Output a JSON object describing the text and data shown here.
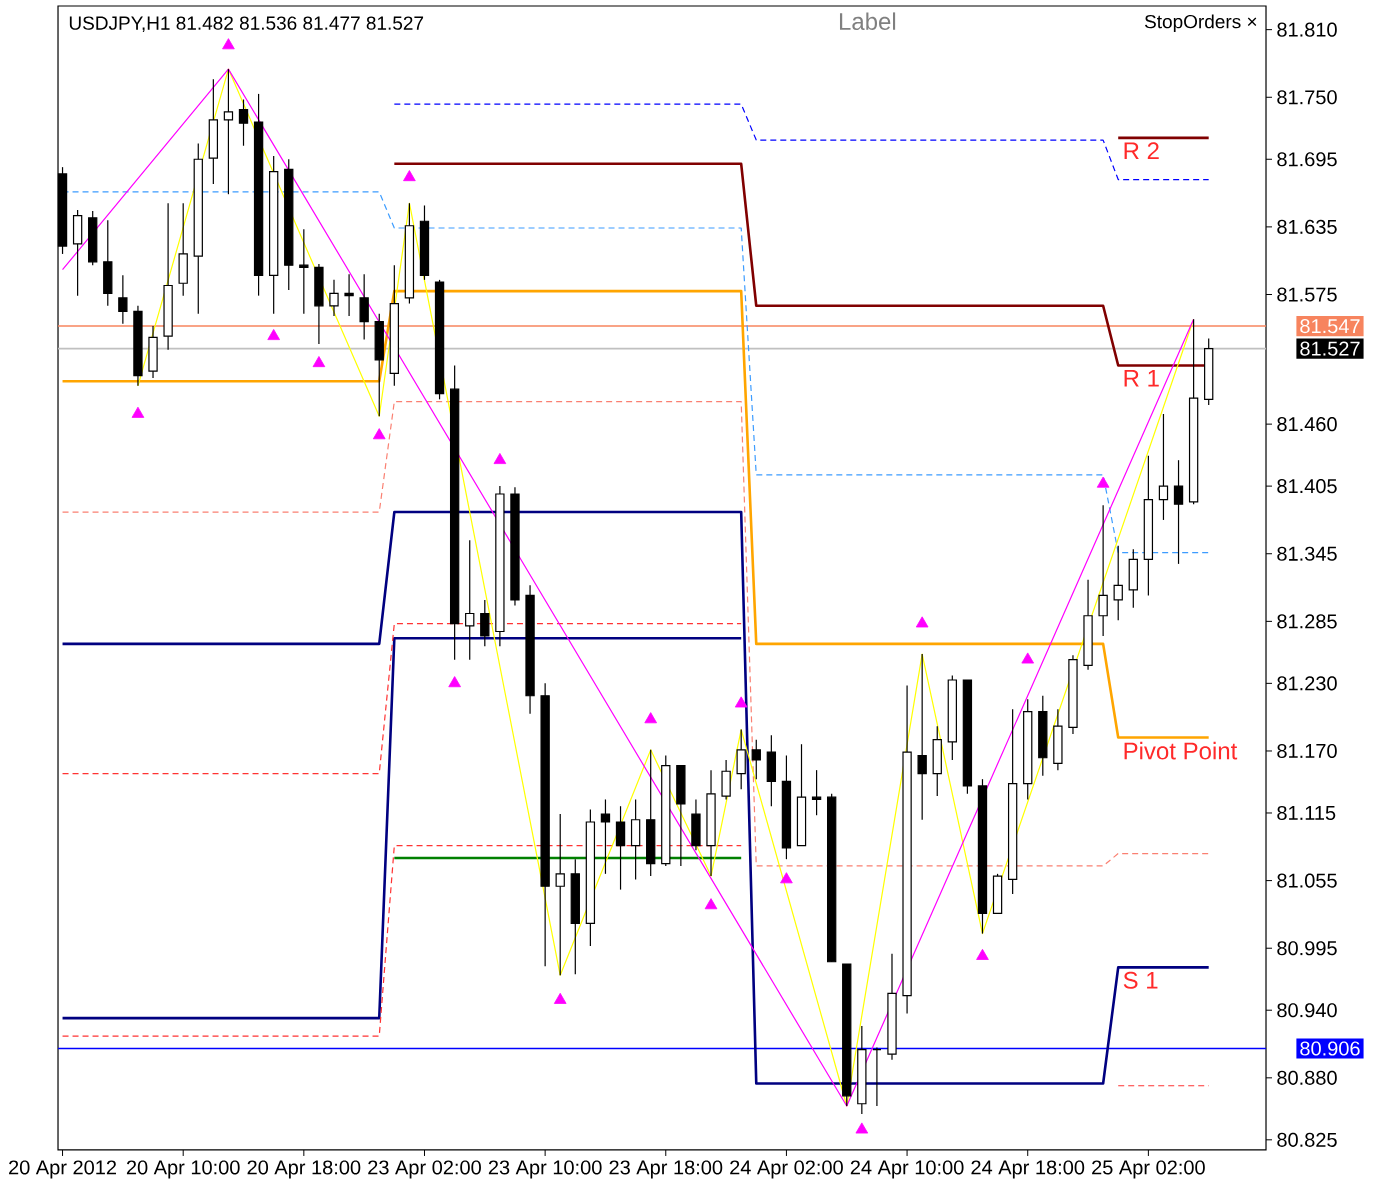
{
  "chart_data": {
    "type": "candlestick",
    "title": "USDJPY,H1 81.482 81.536 81.477 81.527",
    "annotations": [
      "Label",
      "StopOrders ×"
    ],
    "categories": [
      "20 Apr 2012",
      null,
      null,
      null,
      null,
      null,
      null,
      null,
      "20 Apr 10:00",
      null,
      null,
      null,
      null,
      null,
      null,
      null,
      "20 Apr 18:00",
      null,
      null,
      null,
      null,
      null,
      null,
      null,
      "23 Apr 02:00",
      null,
      null,
      null,
      null,
      null,
      null,
      null,
      "23 Apr 10:00",
      null,
      null,
      null,
      null,
      null,
      null,
      null,
      "23 Apr 18:00",
      null,
      null,
      null,
      null,
      null,
      null,
      null,
      "24 Apr 02:00",
      null,
      null,
      null,
      null,
      null,
      null,
      null,
      "24 Apr 10:00",
      null,
      null,
      null,
      null,
      null,
      null,
      null,
      "24 Apr 18:00",
      null,
      null,
      null,
      null,
      null,
      null,
      null,
      "25 Apr 02:00",
      null,
      null,
      null,
      null
    ],
    "ohlc": [
      [
        81.682,
        81.688,
        81.611,
        81.618
      ],
      [
        81.62,
        81.65,
        81.574,
        81.645
      ],
      [
        81.643,
        81.649,
        81.601,
        81.604
      ],
      [
        81.604,
        81.641,
        81.565,
        81.576
      ],
      [
        81.572,
        81.592,
        81.549,
        81.56
      ],
      [
        81.56,
        81.565,
        81.494,
        81.503
      ],
      [
        81.507,
        81.547,
        81.501,
        81.537
      ],
      [
        81.538,
        81.656,
        81.526,
        81.583
      ],
      [
        81.585,
        81.656,
        81.574,
        81.611
      ],
      [
        81.609,
        81.709,
        81.558,
        81.695
      ],
      [
        81.696,
        81.766,
        81.673,
        81.73
      ],
      [
        81.73,
        81.775,
        81.664,
        81.737
      ],
      [
        81.739,
        81.748,
        81.707,
        81.727
      ],
      [
        81.728,
        81.753,
        81.574,
        81.592
      ],
      [
        81.592,
        81.698,
        81.558,
        81.684
      ],
      [
        81.686,
        81.695,
        81.579,
        81.601
      ],
      [
        81.601,
        81.633,
        81.558,
        81.599
      ],
      [
        81.599,
        81.602,
        81.531,
        81.565
      ],
      [
        81.565,
        81.588,
        81.556,
        81.576
      ],
      [
        81.576,
        81.593,
        81.556,
        81.574
      ],
      [
        81.572,
        81.593,
        81.535,
        81.551
      ],
      [
        81.551,
        81.558,
        81.467,
        81.517
      ],
      [
        81.505,
        81.601,
        81.494,
        81.567
      ],
      [
        81.572,
        81.656,
        81.567,
        81.636
      ],
      [
        81.64,
        81.654,
        81.588,
        81.592
      ],
      [
        81.586,
        81.588,
        81.482,
        81.487
      ],
      [
        81.491,
        81.512,
        81.251,
        81.283
      ],
      [
        81.281,
        81.357,
        81.251,
        81.292
      ],
      [
        81.292,
        81.304,
        81.263,
        81.272
      ],
      [
        81.276,
        81.405,
        81.263,
        81.398
      ],
      [
        81.398,
        81.404,
        81.299,
        81.304
      ],
      [
        81.308,
        81.317,
        81.203,
        81.219
      ],
      [
        81.219,
        81.23,
        80.979,
        81.05
      ],
      [
        81.05,
        81.114,
        80.971,
        81.061
      ],
      [
        81.061,
        81.074,
        80.972,
        81.017
      ],
      [
        81.017,
        81.118,
        80.997,
        81.107
      ],
      [
        81.114,
        81.127,
        81.061,
        81.107
      ],
      [
        81.107,
        81.121,
        81.047,
        81.086
      ],
      [
        81.086,
        81.127,
        81.056,
        81.109
      ],
      [
        81.109,
        81.171,
        81.059,
        81.07
      ],
      [
        81.07,
        81.166,
        81.068,
        81.157
      ],
      [
        81.157,
        81.157,
        81.068,
        81.123
      ],
      [
        81.114,
        81.127,
        81.082,
        81.086
      ],
      [
        81.086,
        81.153,
        81.059,
        81.132
      ],
      [
        81.13,
        81.162,
        81.127,
        81.152
      ],
      [
        81.15,
        81.189,
        81.136,
        81.171
      ],
      [
        81.171,
        81.18,
        81.145,
        81.162
      ],
      [
        81.169,
        81.184,
        81.121,
        81.143
      ],
      [
        81.143,
        81.166,
        81.074,
        81.084
      ],
      [
        81.086,
        81.176,
        81.086,
        81.129
      ],
      [
        81.129,
        81.153,
        81.113,
        81.127
      ],
      [
        81.129,
        81.132,
        80.983,
        80.983
      ],
      [
        80.981,
        80.981,
        80.855,
        80.864
      ],
      [
        80.857,
        80.926,
        80.848,
        80.905
      ],
      [
        80.905,
        80.907,
        80.855,
        80.905
      ],
      [
        80.901,
        80.99,
        80.896,
        80.955
      ],
      [
        80.953,
        81.228,
        80.937,
        81.169
      ],
      [
        81.166,
        81.256,
        81.109,
        81.15
      ],
      [
        81.15,
        81.192,
        81.13,
        81.18
      ],
      [
        81.178,
        81.237,
        81.162,
        81.233
      ],
      [
        81.233,
        81.233,
        81.132,
        81.139
      ],
      [
        81.139,
        81.145,
        81.008,
        81.026
      ],
      [
        81.026,
        81.061,
        81.026,
        81.059
      ],
      [
        81.056,
        81.207,
        81.043,
        81.141
      ],
      [
        81.141,
        81.216,
        81.127,
        81.205
      ],
      [
        81.205,
        81.219,
        81.148,
        81.164
      ],
      [
        81.159,
        81.207,
        81.153,
        81.192
      ],
      [
        81.191,
        81.255,
        81.185,
        81.251
      ],
      [
        81.246,
        81.322,
        81.242,
        81.29
      ],
      [
        81.29,
        81.388,
        81.272,
        81.308
      ],
      [
        81.304,
        81.352,
        81.286,
        81.317
      ],
      [
        81.313,
        81.349,
        81.297,
        81.34
      ],
      [
        81.34,
        81.432,
        81.308,
        81.393
      ],
      [
        81.393,
        81.469,
        81.375,
        81.405
      ],
      [
        81.405,
        81.428,
        81.336,
        81.389
      ],
      [
        81.391,
        81.553,
        81.389,
        81.483
      ],
      [
        81.482,
        81.536,
        81.477,
        81.527
      ]
    ],
    "ylim": [
      80.816,
      81.831
    ],
    "yticks": [
      {
        "value": 81.81,
        "label": "81.810"
      },
      {
        "value": 81.75,
        "label": "81.750"
      },
      81.695,
      81.635,
      81.575,
      {
        "value": 81.46,
        "label": "81.460"
      },
      81.405,
      81.345,
      81.285,
      {
        "value": 81.23,
        "label": "81.230"
      },
      {
        "value": 81.17,
        "label": "81.170"
      },
      81.115,
      81.055,
      80.995,
      {
        "value": 80.94,
        "label": "80.940"
      },
      {
        "value": 80.88,
        "label": "80.880"
      },
      80.825
    ],
    "series": [
      {
        "name": "R 2",
        "type": "line",
        "color": "#800000",
        "values": [
          null,
          null,
          null,
          null,
          null,
          null,
          null,
          null,
          null,
          null,
          null,
          null,
          null,
          null,
          null,
          null,
          null,
          null,
          null,
          null,
          null,
          null,
          null,
          null,
          null,
          null,
          null,
          null,
          null,
          null,
          null,
          null,
          null,
          null,
          null,
          null,
          null,
          null,
          null,
          null,
          null,
          null,
          null,
          null,
          null,
          null,
          null,
          null,
          null,
          null,
          null,
          null,
          null,
          null,
          null,
          null,
          null,
          null,
          null,
          null,
          null,
          null,
          null,
          null,
          null,
          null,
          null,
          null,
          null,
          null,
          81.714,
          81.714,
          81.714,
          81.714,
          81.714,
          81.714,
          81.714
        ]
      },
      {
        "name": "R 1",
        "type": "line",
        "color": "#800000",
        "values": [
          null,
          null,
          null,
          null,
          null,
          null,
          null,
          null,
          null,
          null,
          null,
          null,
          null,
          null,
          null,
          null,
          null,
          null,
          null,
          null,
          null,
          null,
          81.691,
          81.691,
          81.691,
          81.691,
          81.691,
          81.691,
          81.691,
          81.691,
          81.691,
          81.691,
          81.691,
          81.691,
          81.691,
          81.691,
          81.691,
          81.691,
          81.691,
          81.691,
          81.691,
          81.691,
          81.691,
          81.691,
          81.691,
          81.691,
          81.565,
          81.565,
          81.565,
          81.565,
          81.565,
          81.565,
          81.565,
          81.565,
          81.565,
          81.565,
          81.565,
          81.565,
          81.565,
          81.565,
          81.565,
          81.565,
          81.565,
          81.565,
          81.565,
          81.565,
          81.565,
          81.565,
          81.565,
          81.565,
          81.512,
          81.512,
          81.512,
          81.512,
          81.512,
          81.512,
          81.512
        ]
      },
      {
        "name": "Pivot Point",
        "type": "line",
        "color": "#ffa500",
        "values": [
          81.498,
          81.498,
          81.498,
          81.498,
          81.498,
          81.498,
          81.498,
          81.498,
          81.498,
          81.498,
          81.498,
          81.498,
          81.498,
          81.498,
          81.498,
          81.498,
          81.498,
          81.498,
          81.498,
          81.498,
          81.498,
          81.498,
          81.578,
          81.578,
          81.578,
          81.578,
          81.578,
          81.578,
          81.578,
          81.578,
          81.578,
          81.578,
          81.578,
          81.578,
          81.578,
          81.578,
          81.578,
          81.578,
          81.578,
          81.578,
          81.578,
          81.578,
          81.578,
          81.578,
          81.578,
          81.578,
          81.265,
          81.265,
          81.265,
          81.265,
          81.265,
          81.265,
          81.265,
          81.265,
          81.265,
          81.265,
          81.265,
          81.265,
          81.265,
          81.265,
          81.265,
          81.265,
          81.265,
          81.265,
          81.265,
          81.265,
          81.265,
          81.265,
          81.265,
          81.265,
          81.182,
          81.182,
          81.182,
          81.182,
          81.182,
          81.182,
          81.182
        ]
      },
      {
        "name": "S 1",
        "type": "line",
        "color": "#000080",
        "values": [
          81.265,
          81.265,
          81.265,
          81.265,
          81.265,
          81.265,
          81.265,
          81.265,
          81.265,
          81.265,
          81.265,
          81.265,
          81.265,
          81.265,
          81.265,
          81.265,
          81.265,
          81.265,
          81.265,
          81.265,
          81.265,
          81.265,
          81.382,
          81.382,
          81.382,
          81.382,
          81.382,
          81.382,
          81.382,
          81.382,
          81.382,
          81.382,
          81.382,
          81.382,
          81.382,
          81.382,
          81.382,
          81.382,
          81.382,
          81.382,
          81.382,
          81.382,
          81.382,
          81.382,
          81.382,
          81.382,
          80.875,
          80.875,
          80.875,
          80.875,
          80.875,
          80.875,
          80.875,
          80.875,
          80.875,
          80.875,
          80.875,
          80.875,
          80.875,
          80.875,
          80.875,
          80.875,
          80.875,
          80.875,
          80.875,
          80.875,
          80.875,
          80.875,
          80.875,
          80.875,
          80.978,
          80.978,
          80.978,
          80.978,
          80.978,
          80.978,
          80.978
        ]
      },
      {
        "type": "line",
        "color": "#000080",
        "values": [
          80.933,
          80.933,
          80.933,
          80.933,
          80.933,
          80.933,
          80.933,
          80.933,
          80.933,
          80.933,
          80.933,
          80.933,
          80.933,
          80.933,
          80.933,
          80.933,
          80.933,
          80.933,
          80.933,
          80.933,
          80.933,
          80.933,
          81.27,
          81.27,
          81.27,
          81.27,
          81.27,
          81.27,
          81.27,
          81.27,
          81.27,
          81.27,
          81.27,
          81.27,
          81.27,
          81.27,
          81.27,
          81.27,
          81.27,
          81.27,
          81.27,
          81.27,
          81.27,
          81.27,
          81.27,
          81.27,
          null,
          null,
          null,
          null,
          null,
          null,
          null,
          null,
          null,
          null,
          null,
          null,
          null,
          null,
          null,
          null,
          null,
          null,
          null,
          null,
          null,
          null,
          null,
          null,
          null,
          null,
          null,
          null,
          null,
          null,
          null
        ]
      },
      {
        "type": "line",
        "color": "#008000",
        "values": [
          null,
          null,
          null,
          null,
          null,
          null,
          null,
          null,
          null,
          null,
          null,
          null,
          null,
          null,
          null,
          null,
          null,
          null,
          null,
          null,
          null,
          null,
          81.075,
          81.075,
          81.075,
          81.075,
          81.075,
          81.075,
          81.075,
          81.075,
          81.075,
          81.075,
          81.075,
          81.075,
          81.075,
          81.075,
          81.075,
          81.075,
          81.075,
          81.075,
          81.075,
          81.075,
          81.075,
          81.075,
          81.075,
          81.075,
          null,
          null,
          null,
          null,
          null,
          null,
          null,
          null,
          null,
          null,
          null,
          null,
          null,
          null,
          null,
          null,
          null,
          null,
          null,
          null,
          null,
          null,
          null,
          null,
          null,
          null,
          null,
          null,
          null,
          null,
          null
        ]
      },
      {
        "type": "line",
        "color": "#0000ff",
        "line_style": "dashed",
        "values": [
          null,
          null,
          null,
          null,
          null,
          null,
          null,
          null,
          null,
          null,
          null,
          null,
          null,
          null,
          null,
          null,
          null,
          null,
          null,
          null,
          null,
          null,
          81.744,
          81.744,
          81.744,
          81.744,
          81.744,
          81.744,
          81.744,
          81.744,
          81.744,
          81.744,
          81.744,
          81.744,
          81.744,
          81.744,
          81.744,
          81.744,
          81.744,
          81.744,
          81.744,
          81.744,
          81.744,
          81.744,
          81.744,
          81.744,
          81.712,
          81.712,
          81.712,
          81.712,
          81.712,
          81.712,
          81.712,
          81.712,
          81.712,
          81.712,
          81.712,
          81.712,
          81.712,
          81.712,
          81.712,
          81.712,
          81.712,
          81.712,
          81.712,
          81.712,
          81.712,
          81.712,
          81.712,
          81.712,
          81.677,
          81.677,
          81.677,
          81.677,
          81.677,
          81.677,
          81.677
        ]
      },
      {
        "type": "line",
        "color": "#3d9cff",
        "line_style": "dashed",
        "values": [
          81.666,
          81.666,
          81.666,
          81.666,
          81.666,
          81.666,
          81.666,
          81.666,
          81.666,
          81.666,
          81.666,
          81.666,
          81.666,
          81.666,
          81.666,
          81.666,
          81.666,
          81.666,
          81.666,
          81.666,
          81.666,
          81.666,
          81.634,
          81.634,
          81.634,
          81.634,
          81.634,
          81.634,
          81.634,
          81.634,
          81.634,
          81.634,
          81.634,
          81.634,
          81.634,
          81.634,
          81.634,
          81.634,
          81.634,
          81.634,
          81.634,
          81.634,
          81.634,
          81.634,
          81.634,
          81.634,
          81.415,
          81.415,
          81.415,
          81.415,
          81.415,
          81.415,
          81.415,
          81.415,
          81.415,
          81.415,
          81.415,
          81.415,
          81.415,
          81.415,
          81.415,
          81.415,
          81.415,
          81.415,
          81.415,
          81.415,
          81.415,
          81.415,
          81.415,
          81.415,
          81.346,
          81.346,
          81.346,
          81.346,
          81.346,
          81.346,
          81.346
        ]
      },
      {
        "type": "line",
        "color": "#fa8072",
        "line_style": "dashed",
        "values": [
          81.382,
          81.382,
          81.382,
          81.382,
          81.382,
          81.382,
          81.382,
          81.382,
          81.382,
          81.382,
          81.382,
          81.382,
          81.382,
          81.382,
          81.382,
          81.382,
          81.382,
          81.382,
          81.382,
          81.382,
          81.382,
          81.382,
          81.48,
          81.48,
          81.48,
          81.48,
          81.48,
          81.48,
          81.48,
          81.48,
          81.48,
          81.48,
          81.48,
          81.48,
          81.48,
          81.48,
          81.48,
          81.48,
          81.48,
          81.48,
          81.48,
          81.48,
          81.48,
          81.48,
          81.48,
          81.48,
          81.068,
          81.068,
          81.068,
          81.068,
          81.068,
          81.068,
          81.068,
          81.068,
          81.068,
          81.068,
          81.068,
          81.068,
          81.068,
          81.068,
          81.068,
          81.068,
          81.068,
          81.068,
          81.068,
          81.068,
          81.068,
          81.068,
          81.068,
          81.068,
          81.079,
          81.079,
          81.079,
          81.079,
          81.079,
          81.079,
          81.079
        ]
      },
      {
        "type": "line",
        "color": "#ff3333",
        "line_style": "dashed",
        "values": [
          81.15,
          81.15,
          81.15,
          81.15,
          81.15,
          81.15,
          81.15,
          81.15,
          81.15,
          81.15,
          81.15,
          81.15,
          81.15,
          81.15,
          81.15,
          81.15,
          81.15,
          81.15,
          81.15,
          81.15,
          81.15,
          81.15,
          81.283,
          81.283,
          81.283,
          81.283,
          81.283,
          81.283,
          81.283,
          81.283,
          81.283,
          81.283,
          81.283,
          81.283,
          81.283,
          81.283,
          81.283,
          81.283,
          81.283,
          81.283,
          81.283,
          81.283,
          81.283,
          81.283,
          81.283,
          81.283,
          null,
          null,
          null,
          null,
          null,
          null,
          null,
          null,
          null,
          null,
          null,
          null,
          null,
          null,
          null,
          null,
          null,
          null,
          null,
          null,
          null,
          null,
          null,
          null,
          null,
          null,
          null,
          null,
          null,
          null,
          null
        ]
      },
      {
        "type": "line",
        "color": "#ff3333",
        "line_style": "dashed",
        "values": [
          null,
          null,
          null,
          null,
          null,
          null,
          null,
          null,
          null,
          null,
          null,
          null,
          null,
          null,
          null,
          null,
          null,
          null,
          null,
          null,
          null,
          null,
          null,
          null,
          null,
          null,
          null,
          null,
          null,
          null,
          null,
          null,
          null,
          null,
          null,
          null,
          null,
          null,
          null,
          null,
          null,
          null,
          null,
          null,
          null,
          null,
          null,
          null,
          null,
          null,
          null,
          null,
          null,
          null,
          null,
          null,
          null,
          null,
          null,
          null,
          null,
          null,
          null,
          null,
          null,
          null,
          null,
          null,
          null,
          null,
          80.873,
          80.873,
          80.873,
          80.873,
          80.873,
          80.873,
          80.873
        ]
      },
      {
        "type": "line",
        "color": "#ff3333",
        "line_style": "dashed",
        "values": [
          80.917,
          80.917,
          80.917,
          80.917,
          80.917,
          80.917,
          80.917,
          80.917,
          80.917,
          80.917,
          80.917,
          80.917,
          80.917,
          80.917,
          80.917,
          80.917,
          80.917,
          80.917,
          80.917,
          80.917,
          80.917,
          80.917,
          81.086,
          81.086,
          81.086,
          81.086,
          81.086,
          81.086,
          81.086,
          81.086,
          81.086,
          81.086,
          81.086,
          81.086,
          81.086,
          81.086,
          81.086,
          81.086,
          81.086,
          81.086,
          81.086,
          81.086,
          81.086,
          81.086,
          81.086,
          81.086,
          null,
          null,
          null,
          null,
          null,
          null,
          null,
          null,
          null,
          null,
          null,
          null,
          null,
          null,
          null,
          null,
          null,
          null,
          null,
          null,
          null,
          null,
          null,
          null,
          null,
          null,
          null,
          null,
          null,
          null,
          null
        ]
      },
      {
        "type": "line",
        "color": "#ffff00",
        "values": [
          null,
          null,
          null,
          null,
          null,
          81.494,
          null,
          null,
          null,
          null,
          null,
          81.775,
          null,
          null,
          null,
          null,
          null,
          null,
          null,
          null,
          null,
          81.467,
          null,
          81.656,
          null,
          null,
          null,
          null,
          null,
          null,
          null,
          null,
          null,
          80.971,
          null,
          null,
          null,
          null,
          null,
          81.171,
          null,
          null,
          null,
          81.059,
          null,
          81.189,
          null,
          null,
          null,
          null,
          null,
          null,
          80.855,
          null,
          null,
          null,
          null,
          81.256,
          null,
          null,
          null,
          81.008,
          null,
          null,
          null,
          null,
          null,
          null,
          null,
          null,
          null,
          null,
          null,
          null,
          null,
          81.553,
          null
        ]
      },
      {
        "type": "line",
        "color": "#ff00ff",
        "values": [
          81.597,
          null,
          null,
          null,
          null,
          null,
          null,
          null,
          null,
          null,
          null,
          81.775,
          null,
          null,
          null,
          null,
          null,
          null,
          null,
          null,
          null,
          null,
          null,
          null,
          null,
          null,
          null,
          null,
          null,
          null,
          null,
          null,
          null,
          null,
          null,
          null,
          null,
          null,
          null,
          null,
          null,
          null,
          null,
          null,
          null,
          null,
          null,
          null,
          null,
          null,
          null,
          null,
          80.855,
          null,
          null,
          null,
          null,
          null,
          null,
          null,
          null,
          null,
          null,
          null,
          null,
          null,
          null,
          null,
          null,
          null,
          null,
          null,
          null,
          null,
          null,
          81.553,
          null
        ]
      },
      {
        "type": "scatter",
        "color": "#ff00ff",
        "marker": "triangle",
        "values": [
          null,
          null,
          null,
          null,
          null,
          81.469,
          null,
          null,
          null,
          null,
          null,
          81.796,
          null,
          null,
          81.538,
          null,
          null,
          81.514,
          null,
          null,
          null,
          81.45,
          null,
          81.679,
          null,
          null,
          81.23,
          null,
          null,
          81.428,
          null,
          null,
          null,
          80.949,
          null,
          null,
          null,
          null,
          null,
          81.198,
          null,
          null,
          null,
          81.033,
          null,
          81.212,
          null,
          null,
          81.056,
          null,
          null,
          null,
          null,
          80.834,
          null,
          null,
          null,
          81.283,
          null,
          null,
          null,
          80.988,
          null,
          null,
          81.251,
          null,
          null,
          null,
          null,
          81.407,
          null,
          null,
          null,
          null,
          null,
          null,
          null
        ]
      }
    ],
    "ref_lines": [
      {
        "axis": "y",
        "value": 81.547,
        "label": "81.547",
        "color": "#f7845e"
      },
      {
        "axis": "y",
        "value": 81.527,
        "label": "81.527",
        "color": "#c0c0c0"
      },
      {
        "axis": "y",
        "value": 80.906,
        "label": "80.906",
        "color": "#0000ff"
      }
    ]
  }
}
